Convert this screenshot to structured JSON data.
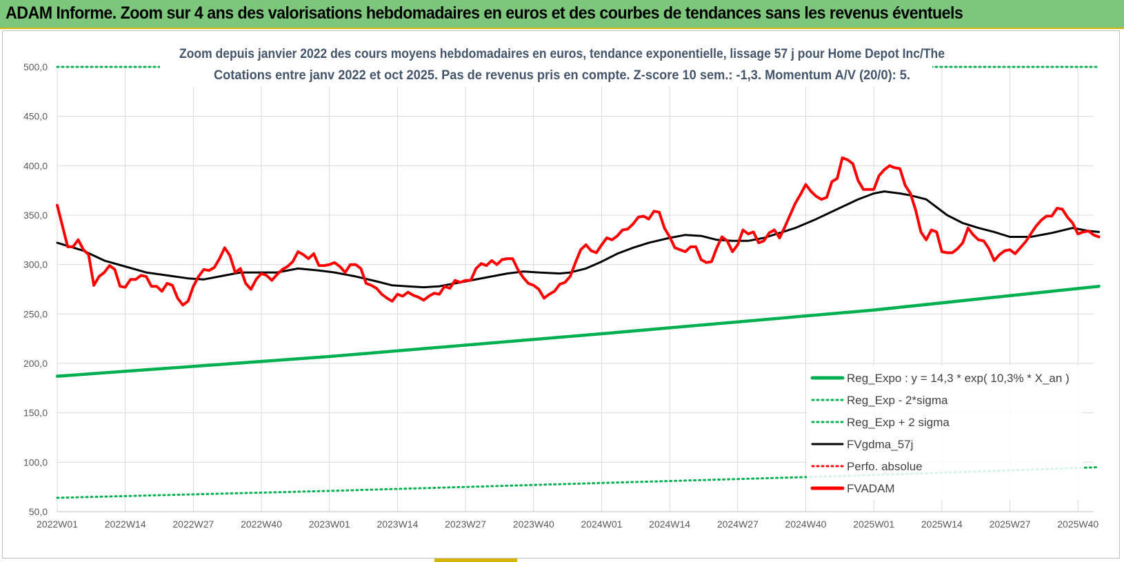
{
  "header": {
    "title": "ADAM Informe. Zoom sur 4 ans des valorisations hebdomadaires en euros et des courbes de tendances sans les revenus éventuels"
  },
  "chart_data": {
    "type": "line",
    "title_line1": "Zoom depuis janvier 2022 des cours moyens hebdomadaires en euros, tendance exponentielle, lissage 57 j pour Home Depot Inc/The",
    "title_line2": "Cotations entre janv 2022 et oct 2025. Pas de revenus pris en compte. Z-score 10 sem.: -1,3.  Momentum A/V (20/0): 5.",
    "xlabel": "",
    "ylabel": "",
    "ylim": [
      50,
      500
    ],
    "yticks": [
      50,
      100,
      150,
      200,
      250,
      300,
      350,
      400,
      450,
      500
    ],
    "ytick_labels": [
      "50,0",
      "100,0",
      "150,0",
      "200,0",
      "250,0",
      "300,0",
      "350,0",
      "400,0",
      "450,0",
      "500,0"
    ],
    "x_count": 199,
    "xtick_labels": [
      {
        "index": 0,
        "label": "2022W01"
      },
      {
        "index": 13,
        "label": "2022W14"
      },
      {
        "index": 26,
        "label": "2022W27"
      },
      {
        "index": 39,
        "label": "2022W40"
      },
      {
        "index": 52,
        "label": "2023W01"
      },
      {
        "index": 65,
        "label": "2023W14"
      },
      {
        "index": 78,
        "label": "2023W27"
      },
      {
        "index": 91,
        "label": "2023W40"
      },
      {
        "index": 104,
        "label": "2024W01"
      },
      {
        "index": 117,
        "label": "2024W14"
      },
      {
        "index": 130,
        "label": "2024W27"
      },
      {
        "index": 143,
        "label": "2024W40"
      },
      {
        "index": 156,
        "label": "2025W01"
      },
      {
        "index": 169,
        "label": "2025W14"
      },
      {
        "index": 182,
        "label": "2025W27"
      },
      {
        "index": 195,
        "label": "2025W40"
      }
    ],
    "grid": true,
    "legend_position": "bottom-right",
    "series": [
      {
        "name": "Reg_Expo : y = 14,3 * exp( 10,3% *  X_an )",
        "color": "#00b050",
        "style": "solid",
        "points": [
          [
            0,
            187
          ],
          [
            52,
            207
          ],
          [
            104,
            230
          ],
          [
            156,
            254
          ],
          [
            199,
            278
          ]
        ]
      },
      {
        "name": "Reg_Exp - 2*sigma",
        "color": "#00b050",
        "style": "dotted",
        "points": [
          [
            0,
            64
          ],
          [
            52,
            71
          ],
          [
            104,
            79
          ],
          [
            156,
            87
          ],
          [
            199,
            95
          ]
        ]
      },
      {
        "name": "Reg_Exp + 2 sigma",
        "color": "#00b050",
        "style": "dotted",
        "points": [
          [
            0,
            500
          ],
          [
            199,
            500
          ]
        ]
      },
      {
        "name": "FVgdma_57j",
        "color": "#000000",
        "style": "solid",
        "points": [
          [
            0,
            322
          ],
          [
            5,
            314
          ],
          [
            9,
            304
          ],
          [
            13,
            298
          ],
          [
            17,
            292
          ],
          [
            21,
            289
          ],
          [
            25,
            286
          ],
          [
            28,
            285
          ],
          [
            31,
            288
          ],
          [
            35,
            292
          ],
          [
            38,
            292
          ],
          [
            42,
            292
          ],
          [
            46,
            296
          ],
          [
            50,
            294
          ],
          [
            53,
            292
          ],
          [
            57,
            288
          ],
          [
            61,
            283
          ],
          [
            64,
            279
          ],
          [
            67,
            278
          ],
          [
            70,
            277
          ],
          [
            73,
            278
          ],
          [
            76,
            281
          ],
          [
            79,
            284
          ],
          [
            83,
            288
          ],
          [
            86,
            291
          ],
          [
            89,
            293
          ],
          [
            92,
            292
          ],
          [
            96,
            291
          ],
          [
            98,
            292
          ],
          [
            101,
            296
          ],
          [
            104,
            303
          ],
          [
            107,
            311
          ],
          [
            110,
            317
          ],
          [
            113,
            322
          ],
          [
            117,
            327
          ],
          [
            120,
            330
          ],
          [
            123,
            329
          ],
          [
            126,
            325
          ],
          [
            129,
            324
          ],
          [
            132,
            324
          ],
          [
            135,
            327
          ],
          [
            138,
            332
          ],
          [
            141,
            337
          ],
          [
            145,
            346
          ],
          [
            149,
            356
          ],
          [
            153,
            366
          ],
          [
            156,
            372
          ],
          [
            158,
            374
          ],
          [
            161,
            372
          ],
          [
            163,
            370
          ],
          [
            166,
            366
          ],
          [
            170,
            350
          ],
          [
            173,
            342
          ],
          [
            176,
            337
          ],
          [
            179,
            333
          ],
          [
            182,
            328
          ],
          [
            186,
            328
          ],
          [
            190,
            332
          ],
          [
            194,
            337
          ],
          [
            197,
            334
          ],
          [
            199,
            333
          ]
        ]
      },
      {
        "name": "Perfo. absolue",
        "color": "#ff0000",
        "style": "dotted",
        "points": []
      },
      {
        "name": "FVADAM",
        "color": "#ff0000",
        "style": "solid",
        "points": [
          [
            0,
            360
          ],
          [
            2,
            318
          ],
          [
            3,
            318
          ],
          [
            4,
            325
          ],
          [
            5,
            315
          ],
          [
            6,
            310
          ],
          [
            7,
            279
          ],
          [
            8,
            288
          ],
          [
            9,
            292
          ],
          [
            10,
            299
          ],
          [
            11,
            295
          ],
          [
            12,
            278
          ],
          [
            13,
            277
          ],
          [
            14,
            285
          ],
          [
            15,
            285
          ],
          [
            16,
            289
          ],
          [
            17,
            288
          ],
          [
            18,
            278
          ],
          [
            19,
            278
          ],
          [
            20,
            273
          ],
          [
            21,
            281
          ],
          [
            22,
            279
          ],
          [
            23,
            266
          ],
          [
            24,
            259
          ],
          [
            25,
            263
          ],
          [
            26,
            278
          ],
          [
            27,
            288
          ],
          [
            28,
            295
          ],
          [
            29,
            294
          ],
          [
            30,
            297
          ],
          [
            31,
            306
          ],
          [
            32,
            317
          ],
          [
            33,
            309
          ],
          [
            34,
            292
          ],
          [
            35,
            296
          ],
          [
            36,
            281
          ],
          [
            37,
            275
          ],
          [
            38,
            285
          ],
          [
            39,
            291
          ],
          [
            40,
            289
          ],
          [
            41,
            284
          ],
          [
            42,
            290
          ],
          [
            43,
            295
          ],
          [
            44,
            298
          ],
          [
            45,
            303
          ],
          [
            46,
            313
          ],
          [
            47,
            310
          ],
          [
            48,
            306
          ],
          [
            49,
            311
          ],
          [
            50,
            299
          ],
          [
            51,
            299
          ],
          [
            52,
            300
          ],
          [
            53,
            302
          ],
          [
            54,
            298
          ],
          [
            55,
            292
          ],
          [
            56,
            300
          ],
          [
            57,
            300
          ],
          [
            58,
            296
          ],
          [
            59,
            281
          ],
          [
            60,
            279
          ],
          [
            61,
            276
          ],
          [
            62,
            270
          ],
          [
            63,
            266
          ],
          [
            64,
            263
          ],
          [
            65,
            270
          ],
          [
            66,
            268
          ],
          [
            67,
            272
          ],
          [
            68,
            269
          ],
          [
            69,
            267
          ],
          [
            70,
            264
          ],
          [
            71,
            268
          ],
          [
            72,
            271
          ],
          [
            73,
            270
          ],
          [
            74,
            278
          ],
          [
            75,
            276
          ],
          [
            76,
            284
          ],
          [
            77,
            282
          ],
          [
            78,
            284
          ],
          [
            79,
            284
          ],
          [
            80,
            296
          ],
          [
            81,
            301
          ],
          [
            82,
            299
          ],
          [
            83,
            304
          ],
          [
            84,
            300
          ],
          [
            85,
            305
          ],
          [
            86,
            306
          ],
          [
            87,
            306
          ],
          [
            88,
            295
          ],
          [
            89,
            287
          ],
          [
            90,
            281
          ],
          [
            91,
            279
          ],
          [
            92,
            275
          ],
          [
            93,
            266
          ],
          [
            94,
            270
          ],
          [
            95,
            273
          ],
          [
            96,
            280
          ],
          [
            97,
            282
          ],
          [
            98,
            288
          ],
          [
            99,
            302
          ],
          [
            100,
            315
          ],
          [
            101,
            320
          ],
          [
            102,
            314
          ],
          [
            103,
            312
          ],
          [
            104,
            320
          ],
          [
            105,
            327
          ],
          [
            106,
            325
          ],
          [
            107,
            329
          ],
          [
            108,
            335
          ],
          [
            109,
            336
          ],
          [
            110,
            341
          ],
          [
            111,
            348
          ],
          [
            112,
            349
          ],
          [
            113,
            346
          ],
          [
            114,
            354
          ],
          [
            115,
            353
          ],
          [
            116,
            337
          ],
          [
            117,
            328
          ],
          [
            118,
            317
          ],
          [
            119,
            315
          ],
          [
            120,
            313
          ],
          [
            121,
            318
          ],
          [
            122,
            318
          ],
          [
            123,
            305
          ],
          [
            124,
            302
          ],
          [
            125,
            303
          ],
          [
            126,
            317
          ],
          [
            127,
            328
          ],
          [
            128,
            324
          ],
          [
            129,
            313
          ],
          [
            130,
            320
          ],
          [
            131,
            335
          ],
          [
            132,
            331
          ],
          [
            133,
            333
          ],
          [
            134,
            322
          ],
          [
            135,
            324
          ],
          [
            136,
            332
          ],
          [
            137,
            335
          ],
          [
            138,
            327
          ],
          [
            139,
            338
          ],
          [
            140,
            350
          ],
          [
            141,
            362
          ],
          [
            142,
            371
          ],
          [
            143,
            381
          ],
          [
            144,
            374
          ],
          [
            145,
            369
          ],
          [
            146,
            366
          ],
          [
            147,
            368
          ],
          [
            148,
            384
          ],
          [
            149,
            387
          ],
          [
            150,
            408
          ],
          [
            151,
            406
          ],
          [
            152,
            402
          ],
          [
            153,
            385
          ],
          [
            154,
            376
          ],
          [
            155,
            376
          ],
          [
            156,
            376
          ],
          [
            157,
            390
          ],
          [
            158,
            396
          ],
          [
            159,
            400
          ],
          [
            160,
            398
          ],
          [
            161,
            397
          ],
          [
            162,
            380
          ],
          [
            163,
            372
          ],
          [
            164,
            355
          ],
          [
            165,
            333
          ],
          [
            166,
            325
          ],
          [
            167,
            335
          ],
          [
            168,
            333
          ],
          [
            169,
            313
          ],
          [
            170,
            312
          ],
          [
            171,
            312
          ],
          [
            172,
            316
          ],
          [
            173,
            322
          ],
          [
            174,
            337
          ],
          [
            175,
            330
          ],
          [
            176,
            325
          ],
          [
            177,
            324
          ],
          [
            178,
            316
          ],
          [
            179,
            304
          ],
          [
            180,
            310
          ],
          [
            181,
            314
          ],
          [
            182,
            315
          ],
          [
            183,
            311
          ],
          [
            184,
            317
          ],
          [
            185,
            323
          ],
          [
            186,
            331
          ],
          [
            187,
            339
          ],
          [
            188,
            345
          ],
          [
            189,
            349
          ],
          [
            190,
            349
          ],
          [
            191,
            357
          ],
          [
            192,
            356
          ],
          [
            193,
            348
          ],
          [
            194,
            342
          ],
          [
            195,
            331
          ],
          [
            196,
            333
          ],
          [
            197,
            334
          ],
          [
            198,
            330
          ],
          [
            199,
            328
          ]
        ]
      }
    ]
  }
}
